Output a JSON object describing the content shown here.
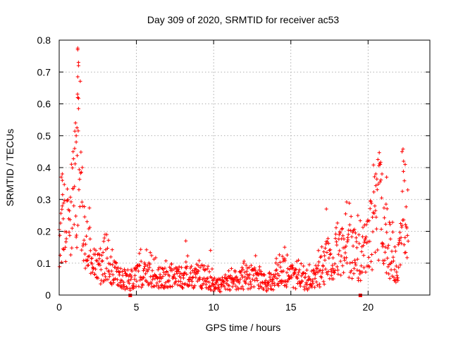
{
  "chart_data": {
    "type": "scatter",
    "title": "Day 309 of 2020, SRMTID for receiver ac53",
    "xlabel": "GPS time / hours",
    "ylabel": "SRMTID / TECUs",
    "xlim": [
      0,
      24
    ],
    "ylim": [
      0,
      0.8
    ],
    "xticks": [
      0,
      5,
      10,
      15,
      20
    ],
    "yticks": [
      0,
      0.1,
      0.2,
      0.3,
      0.4,
      0.5,
      0.6,
      0.7,
      0.8
    ],
    "xtick_labels": [
      "0",
      "5",
      "10",
      "15",
      "20"
    ],
    "ytick_labels": [
      "0",
      "0.1",
      "0.2",
      "0.3",
      "0.4",
      "0.5",
      "0.6",
      "0.7",
      "0.8"
    ],
    "grid": true,
    "marker": "plus",
    "color": "#ff0000",
    "data_gap_markers_x": [
      4.6,
      19.5
    ],
    "series": [
      {
        "name": "SRMTID",
        "profile": [
          [
            0.0,
            0.15
          ],
          [
            0.3,
            0.22
          ],
          [
            0.6,
            0.2
          ],
          [
            0.9,
            0.28
          ],
          [
            1.2,
            0.45
          ],
          [
            1.5,
            0.2
          ],
          [
            1.8,
            0.18
          ],
          [
            2.1,
            0.1
          ],
          [
            2.6,
            0.08
          ],
          [
            3.0,
            0.13
          ],
          [
            3.5,
            0.07
          ],
          [
            4.0,
            0.05
          ],
          [
            4.6,
            0.04
          ],
          [
            5.0,
            0.06
          ],
          [
            5.5,
            0.07
          ],
          [
            6.0,
            0.06
          ],
          [
            7.0,
            0.05
          ],
          [
            8.0,
            0.055
          ],
          [
            9.0,
            0.06
          ],
          [
            9.5,
            0.055
          ],
          [
            10.0,
            0.035
          ],
          [
            10.5,
            0.03
          ],
          [
            11.0,
            0.04
          ],
          [
            12.0,
            0.05
          ],
          [
            12.5,
            0.06
          ],
          [
            13.0,
            0.055
          ],
          [
            13.5,
            0.03
          ],
          [
            14.0,
            0.05
          ],
          [
            14.5,
            0.08
          ],
          [
            15.0,
            0.06
          ],
          [
            15.5,
            0.05
          ],
          [
            16.0,
            0.04
          ],
          [
            16.5,
            0.05
          ],
          [
            17.0,
            0.08
          ],
          [
            17.5,
            0.12
          ],
          [
            18.0,
            0.12
          ],
          [
            18.5,
            0.16
          ],
          [
            19.0,
            0.13
          ],
          [
            19.5,
            0.12
          ],
          [
            20.0,
            0.15
          ],
          [
            20.5,
            0.25
          ],
          [
            20.8,
            0.3
          ],
          [
            21.0,
            0.2
          ],
          [
            21.5,
            0.13
          ],
          [
            22.0,
            0.1
          ],
          [
            22.3,
            0.25
          ],
          [
            22.6,
            0.2
          ]
        ],
        "spikes": [
          [
            1.2,
            0.775
          ],
          [
            1.2,
            0.77
          ],
          [
            1.25,
            0.73
          ],
          [
            1.25,
            0.72
          ],
          [
            1.2,
            0.685
          ],
          [
            1.2,
            0.62
          ],
          [
            1.25,
            0.585
          ],
          [
            1.15,
            0.525
          ],
          [
            1.1,
            0.5
          ],
          [
            1.1,
            0.48
          ],
          [
            1.0,
            0.46
          ],
          [
            0.9,
            0.45
          ],
          [
            0.2,
            0.38
          ],
          [
            0.2,
            0.36
          ],
          [
            8.2,
            0.17
          ],
          [
            9.8,
            0.14
          ],
          [
            14.6,
            0.15
          ],
          [
            17.3,
            0.27
          ],
          [
            20.5,
            0.38
          ],
          [
            20.9,
            0.38
          ],
          [
            21.2,
            0.37
          ],
          [
            22.2,
            0.45
          ],
          [
            22.3,
            0.42
          ],
          [
            22.4,
            0.41
          ]
        ]
      }
    ]
  }
}
